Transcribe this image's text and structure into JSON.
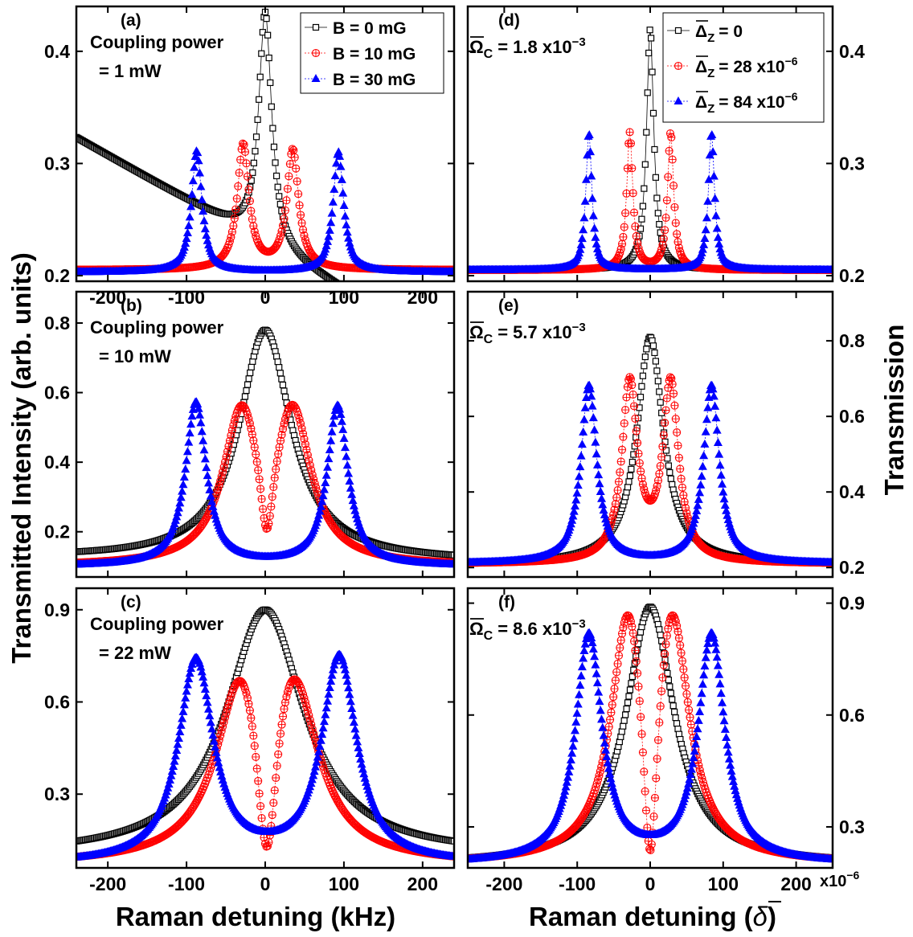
{
  "figure": {
    "left_ylabel": "Transmitted Intensity (arb. units)",
    "right_ylabel": "Transmission",
    "left_xlabel": "Raman detuning (kHz)",
    "right_xlabel_prefix": "Raman detuning (",
    "right_xlabel_symbol": "δ",
    "right_xlabel_suffix": ")",
    "right_x_multiplier_base": "x10",
    "right_x_multiplier_exp": "−6"
  },
  "colors": {
    "black": "#000000",
    "red": "#ff0000",
    "blue": "#0000ff"
  },
  "chart_data": [
    {
      "panel": "a",
      "type": "scatter",
      "tag": "(a)",
      "annotation": [
        "Coupling power",
        "= 1 mW"
      ],
      "xlim": [
        -240,
        240
      ],
      "ylim": [
        0.195,
        0.44
      ],
      "xticks": [
        "-200",
        "-100",
        "0",
        "100",
        "200"
      ],
      "xtick_values": [
        -200,
        -100,
        0,
        100,
        200
      ],
      "yticks": [
        "0.2",
        "0.3",
        "0.4"
      ],
      "ytick_values": [
        0.2,
        0.3,
        0.4
      ],
      "legend": "top-right",
      "series": [
        {
          "name": "B = 0 mG",
          "color": "black",
          "marker": "square",
          "baseline": 0.227,
          "peaks": [
            {
              "x": 0,
              "amp": 0.208,
              "w": 10
            }
          ],
          "tilt": -0.0004
        },
        {
          "name": "B = 10 mG",
          "color": "red",
          "marker": "circle-plus",
          "baseline": 0.205,
          "peaks": [
            {
              "x": -28,
              "amp": 0.111,
              "w": 9
            },
            {
              "x": 35,
              "amp": 0.106,
              "w": 9
            }
          ],
          "tilt": 0
        },
        {
          "name": "B = 30 mG",
          "color": "blue",
          "marker": "triangle",
          "baseline": 0.203,
          "peaks": [
            {
              "x": -87,
              "amp": 0.108,
              "w": 8
            },
            {
              "x": 93,
              "amp": 0.107,
              "w": 8
            }
          ],
          "tilt": 0
        }
      ]
    },
    {
      "panel": "d",
      "type": "scatter",
      "tag": "(d)",
      "annotation_symbol": "Ω",
      "annotation_sub": "C",
      "annotation_value": "= 1.8 x10",
      "annotation_exp": "−3",
      "xlim": [
        -250,
        250
      ],
      "ylim": [
        0.195,
        0.44
      ],
      "xticks": [],
      "xtick_values": [
        -200,
        -100,
        0,
        100,
        200
      ],
      "yticks": [
        "0.2",
        "0.3",
        "0.4"
      ],
      "ytick_values": [
        0.2,
        0.3,
        0.4
      ],
      "legend": "top-right",
      "series": [
        {
          "name_symbol": "Δ",
          "name_sub": "Z",
          "name_value": "= 0",
          "name_exp": "",
          "color": "black",
          "marker": "square",
          "baseline": 0.205,
          "peaks": [
            {
              "x": 0,
              "amp": 0.215,
              "w": 6
            }
          ],
          "tilt": 0
        },
        {
          "name_symbol": "Δ",
          "name_sub": "Z",
          "name_value": "= 28 x10",
          "name_exp": "−6",
          "color": "red",
          "marker": "circle-plus",
          "baseline": 0.205,
          "peaks": [
            {
              "x": -28,
              "amp": 0.122,
              "w": 5
            },
            {
              "x": 28,
              "amp": 0.122,
              "w": 5
            }
          ],
          "tilt": 0
        },
        {
          "name_symbol": "Δ",
          "name_sub": "Z",
          "name_value": "= 84 x10",
          "name_exp": "−6",
          "color": "blue",
          "marker": "triangle",
          "baseline": 0.205,
          "peaks": [
            {
              "x": -84,
              "amp": 0.122,
              "w": 5
            },
            {
              "x": 84,
              "amp": 0.122,
              "w": 5
            }
          ],
          "tilt": 0
        }
      ]
    },
    {
      "panel": "b",
      "type": "scatter",
      "tag": "(b)",
      "annotation": [
        "Coupling power",
        "= 10 mW"
      ],
      "xlim": [
        -240,
        240
      ],
      "ylim": [
        0.07,
        0.89
      ],
      "xticks": [],
      "xtick_values": [
        -200,
        -100,
        0,
        100,
        200
      ],
      "yticks": [
        "0.2",
        "0.4",
        "0.6",
        "0.8"
      ],
      "ytick_values": [
        0.2,
        0.4,
        0.6,
        0.8
      ],
      "series": [
        {
          "color": "black",
          "marker": "square",
          "baseline": 0.12,
          "peaks": [
            {
              "x": 0,
              "amp": 0.66,
              "w": 40
            }
          ],
          "tilt": -2e-05
        },
        {
          "color": "red",
          "marker": "circle-plus",
          "baseline": 0.1,
          "peaks": [
            {
              "x": -30,
              "amp": 0.42,
              "w": 28
            },
            {
              "x": 35,
              "amp": 0.42,
              "w": 28
            },
            {
              "x": 2,
              "amp": -0.25,
              "w": 10
            }
          ],
          "tilt": 0
        },
        {
          "color": "blue",
          "marker": "triangle",
          "baseline": 0.1,
          "peaks": [
            {
              "x": -88,
              "amp": 0.47,
              "w": 16
            },
            {
              "x": 92,
              "amp": 0.46,
              "w": 16
            }
          ],
          "tilt": 0
        }
      ]
    },
    {
      "panel": "e",
      "type": "scatter",
      "tag": "(e)",
      "annotation_symbol": "Ω",
      "annotation_sub": "C",
      "annotation_value": "= 5.7 x10",
      "annotation_exp": "−3",
      "xlim": [
        -250,
        250
      ],
      "ylim": [
        0.175,
        0.93
      ],
      "xticks": [],
      "xtick_values": [
        -200,
        -100,
        0,
        100,
        200
      ],
      "yticks": [
        "0.2",
        "0.4",
        "0.6",
        "0.8"
      ],
      "ytick_values": [
        0.2,
        0.4,
        0.6,
        0.8
      ],
      "series": [
        {
          "color": "black",
          "marker": "square",
          "baseline": 0.21,
          "peaks": [
            {
              "x": 0,
              "amp": 0.6,
              "w": 22
            }
          ],
          "tilt": 0
        },
        {
          "color": "red",
          "marker": "circle-plus",
          "baseline": 0.21,
          "peaks": [
            {
              "x": -28,
              "amp": 0.47,
              "w": 13
            },
            {
              "x": 28,
              "amp": 0.47,
              "w": 13
            }
          ],
          "tilt": 0
        },
        {
          "color": "blue",
          "marker": "triangle",
          "baseline": 0.21,
          "peaks": [
            {
              "x": -84,
              "amp": 0.47,
              "w": 13
            },
            {
              "x": 84,
              "amp": 0.47,
              "w": 13
            }
          ],
          "tilt": 0
        }
      ]
    },
    {
      "panel": "c",
      "type": "scatter",
      "tag": "(c)",
      "annotation": [
        "Coupling power",
        "= 22 mW"
      ],
      "xlim": [
        -240,
        240
      ],
      "ylim": [
        0.06,
        0.97
      ],
      "xticks": [
        "-200",
        "-100",
        "0",
        "100",
        "200"
      ],
      "xtick_values": [
        -200,
        -100,
        0,
        100,
        200
      ],
      "yticks": [
        "0.3",
        "0.6",
        "0.9"
      ],
      "ytick_values": [
        0.3,
        0.6,
        0.9
      ],
      "series": [
        {
          "color": "black",
          "marker": "square",
          "baseline": 0.1,
          "peaks": [
            {
              "x": 0,
              "amp": 0.8,
              "w": 60
            }
          ],
          "tilt": 0
        },
        {
          "color": "red",
          "marker": "circle-plus",
          "baseline": 0.07,
          "peaks": [
            {
              "x": -30,
              "amp": 0.57,
              "w": 38
            },
            {
              "x": 35,
              "amp": 0.57,
              "w": 38
            },
            {
              "x": 2,
              "amp": -0.6,
              "w": 16
            }
          ],
          "tilt": 0
        },
        {
          "color": "blue",
          "marker": "triangle",
          "baseline": 0.07,
          "peaks": [
            {
              "x": -88,
              "amp": 0.66,
              "w": 27
            },
            {
              "x": 94,
              "amp": 0.67,
              "w": 27
            }
          ],
          "tilt": 0
        }
      ]
    },
    {
      "panel": "f",
      "type": "scatter",
      "tag": "(f)",
      "annotation_symbol": "Ω",
      "annotation_sub": "C",
      "annotation_value": "= 8.6 x10",
      "annotation_exp": "−3",
      "xlim": [
        -250,
        250
      ],
      "ylim": [
        0.19,
        0.94
      ],
      "xticks": [
        "-200",
        "-100",
        "0",
        "100",
        "200"
      ],
      "xtick_values": [
        -200,
        -100,
        0,
        100,
        200
      ],
      "yticks": [
        "0.3",
        "0.6",
        "0.9"
      ],
      "ytick_values": [
        0.3,
        0.6,
        0.9
      ],
      "series": [
        {
          "color": "black",
          "marker": "square",
          "baseline": 0.2,
          "peaks": [
            {
              "x": 0,
              "amp": 0.69,
              "w": 40
            }
          ],
          "tilt": 0
        },
        {
          "color": "red",
          "marker": "circle-plus",
          "baseline": 0.2,
          "peaks": [
            {
              "x": -30,
              "amp": 0.63,
              "w": 28
            },
            {
              "x": 30,
              "amp": 0.63,
              "w": 28
            },
            {
              "x": 0,
              "amp": -0.55,
              "w": 12
            }
          ],
          "tilt": 0
        },
        {
          "color": "blue",
          "marker": "triangle",
          "baseline": 0.2,
          "peaks": [
            {
              "x": -84,
              "amp": 0.61,
              "w": 22
            },
            {
              "x": 84,
              "amp": 0.61,
              "w": 22
            }
          ],
          "tilt": 0
        }
      ]
    }
  ]
}
